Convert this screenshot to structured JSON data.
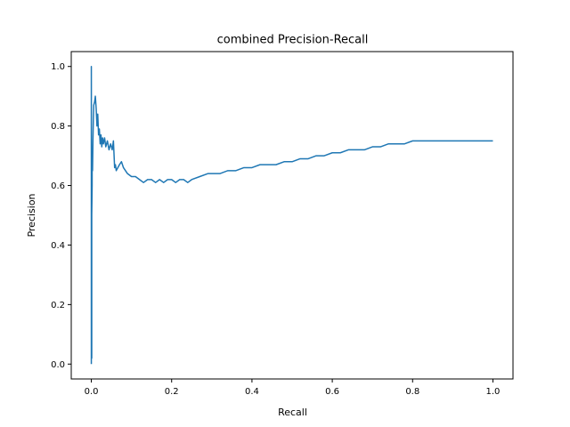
{
  "chart_data": {
    "type": "line",
    "title": "combined Precision-Recall",
    "xlabel": "Recall",
    "ylabel": "Precision",
    "xlim": [
      -0.05,
      1.05
    ],
    "ylim": [
      -0.05,
      1.05
    ],
    "xticks": [
      0.0,
      0.2,
      0.4,
      0.6,
      0.8,
      1.0
    ],
    "xtick_labels": [
      "0.0",
      "0.2",
      "0.4",
      "0.6",
      "0.8",
      "1.0"
    ],
    "yticks": [
      0.0,
      0.2,
      0.4,
      0.6,
      0.8,
      1.0
    ],
    "ytick_labels": [
      "0.0",
      "0.2",
      "0.4",
      "0.6",
      "0.8",
      "1.0"
    ],
    "grid": false,
    "legend": false,
    "line_color": "#1f77b4",
    "series": [
      {
        "x": [
          0.0,
          0.0,
          0.001,
          0.001,
          0.002,
          0.002,
          0.003,
          0.004,
          0.005,
          0.006,
          0.008,
          0.01,
          0.012,
          0.014,
          0.016,
          0.018,
          0.02,
          0.022,
          0.024,
          0.026,
          0.028,
          0.03,
          0.033,
          0.036,
          0.04,
          0.044,
          0.048,
          0.052,
          0.055,
          0.058,
          0.06,
          0.062,
          0.066,
          0.07,
          0.075,
          0.08,
          0.085,
          0.09,
          0.1,
          0.11,
          0.12,
          0.13,
          0.14,
          0.15,
          0.16,
          0.17,
          0.18,
          0.19,
          0.2,
          0.21,
          0.22,
          0.23,
          0.24,
          0.25,
          0.27,
          0.29,
          0.3,
          0.32,
          0.34,
          0.36,
          0.38,
          0.4,
          0.42,
          0.44,
          0.46,
          0.48,
          0.5,
          0.52,
          0.54,
          0.56,
          0.58,
          0.6,
          0.62,
          0.64,
          0.66,
          0.68,
          0.7,
          0.72,
          0.74,
          0.76,
          0.78,
          0.8,
          0.82,
          0.84,
          0.86,
          0.88,
          0.9,
          0.92,
          0.94,
          0.96,
          0.98,
          1.0
        ],
        "y": [
          0.0,
          1.0,
          0.02,
          0.5,
          0.6,
          0.7,
          0.65,
          0.75,
          0.82,
          0.87,
          0.88,
          0.9,
          0.86,
          0.8,
          0.84,
          0.77,
          0.79,
          0.74,
          0.77,
          0.73,
          0.76,
          0.74,
          0.76,
          0.73,
          0.75,
          0.72,
          0.74,
          0.72,
          0.75,
          0.66,
          0.67,
          0.65,
          0.66,
          0.67,
          0.68,
          0.66,
          0.65,
          0.64,
          0.63,
          0.63,
          0.62,
          0.61,
          0.62,
          0.62,
          0.61,
          0.62,
          0.61,
          0.62,
          0.62,
          0.61,
          0.62,
          0.62,
          0.61,
          0.62,
          0.63,
          0.64,
          0.64,
          0.64,
          0.65,
          0.65,
          0.66,
          0.66,
          0.67,
          0.67,
          0.67,
          0.68,
          0.68,
          0.69,
          0.69,
          0.7,
          0.7,
          0.71,
          0.71,
          0.72,
          0.72,
          0.72,
          0.73,
          0.73,
          0.74,
          0.74,
          0.74,
          0.75,
          0.75,
          0.75,
          0.75,
          0.75,
          0.75,
          0.75,
          0.75,
          0.75,
          0.75,
          0.75
        ]
      }
    ]
  }
}
